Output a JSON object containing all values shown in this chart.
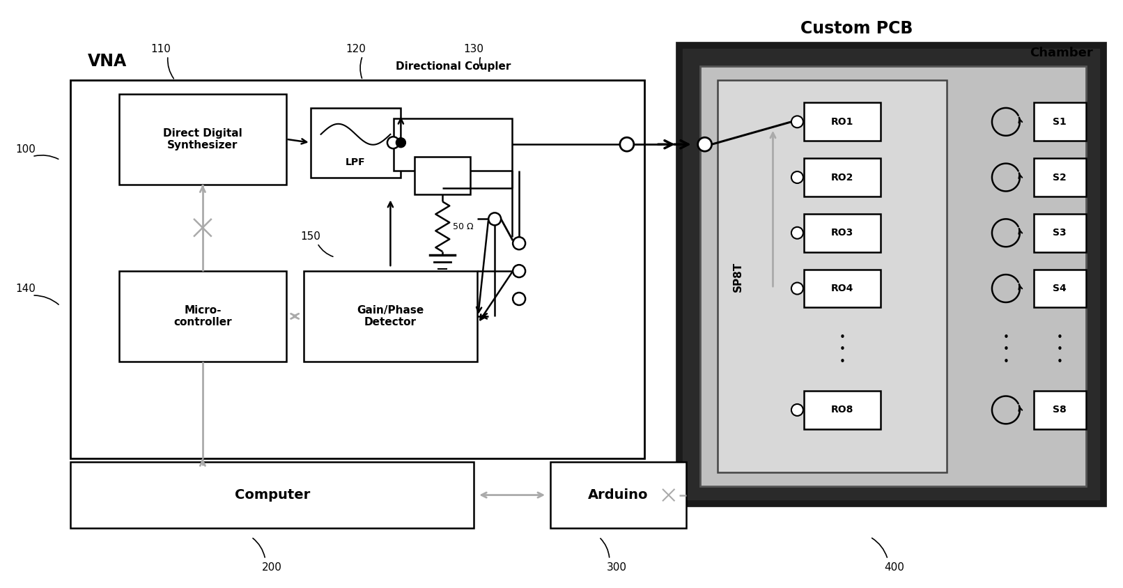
{
  "bg_color": "#ffffff",
  "line_color": "#000000",
  "gray_color": "#aaaaaa",
  "fig_width": 16.12,
  "fig_height": 8.44,
  "labels": {
    "vna": "VNA",
    "custom_pcb": "Custom PCB",
    "dds": "Direct Digital\nSynthesizer",
    "lpf": "LPF",
    "dir_coupler": "Directional Coupler",
    "micro": "Micro-\ncontroller",
    "gain_phase": "Gain/Phase\nDetector",
    "computer": "Computer",
    "arduino": "Arduino",
    "sp8t": "SP8T",
    "chamber": "Chamber",
    "resistor": "50 Ω",
    "ref_100": "100",
    "ref_110": "110",
    "ref_120": "120",
    "ref_130": "130",
    "ref_140": "140",
    "ref_150": "150",
    "ref_200": "200",
    "ref_300": "300",
    "ref_400": "400"
  }
}
